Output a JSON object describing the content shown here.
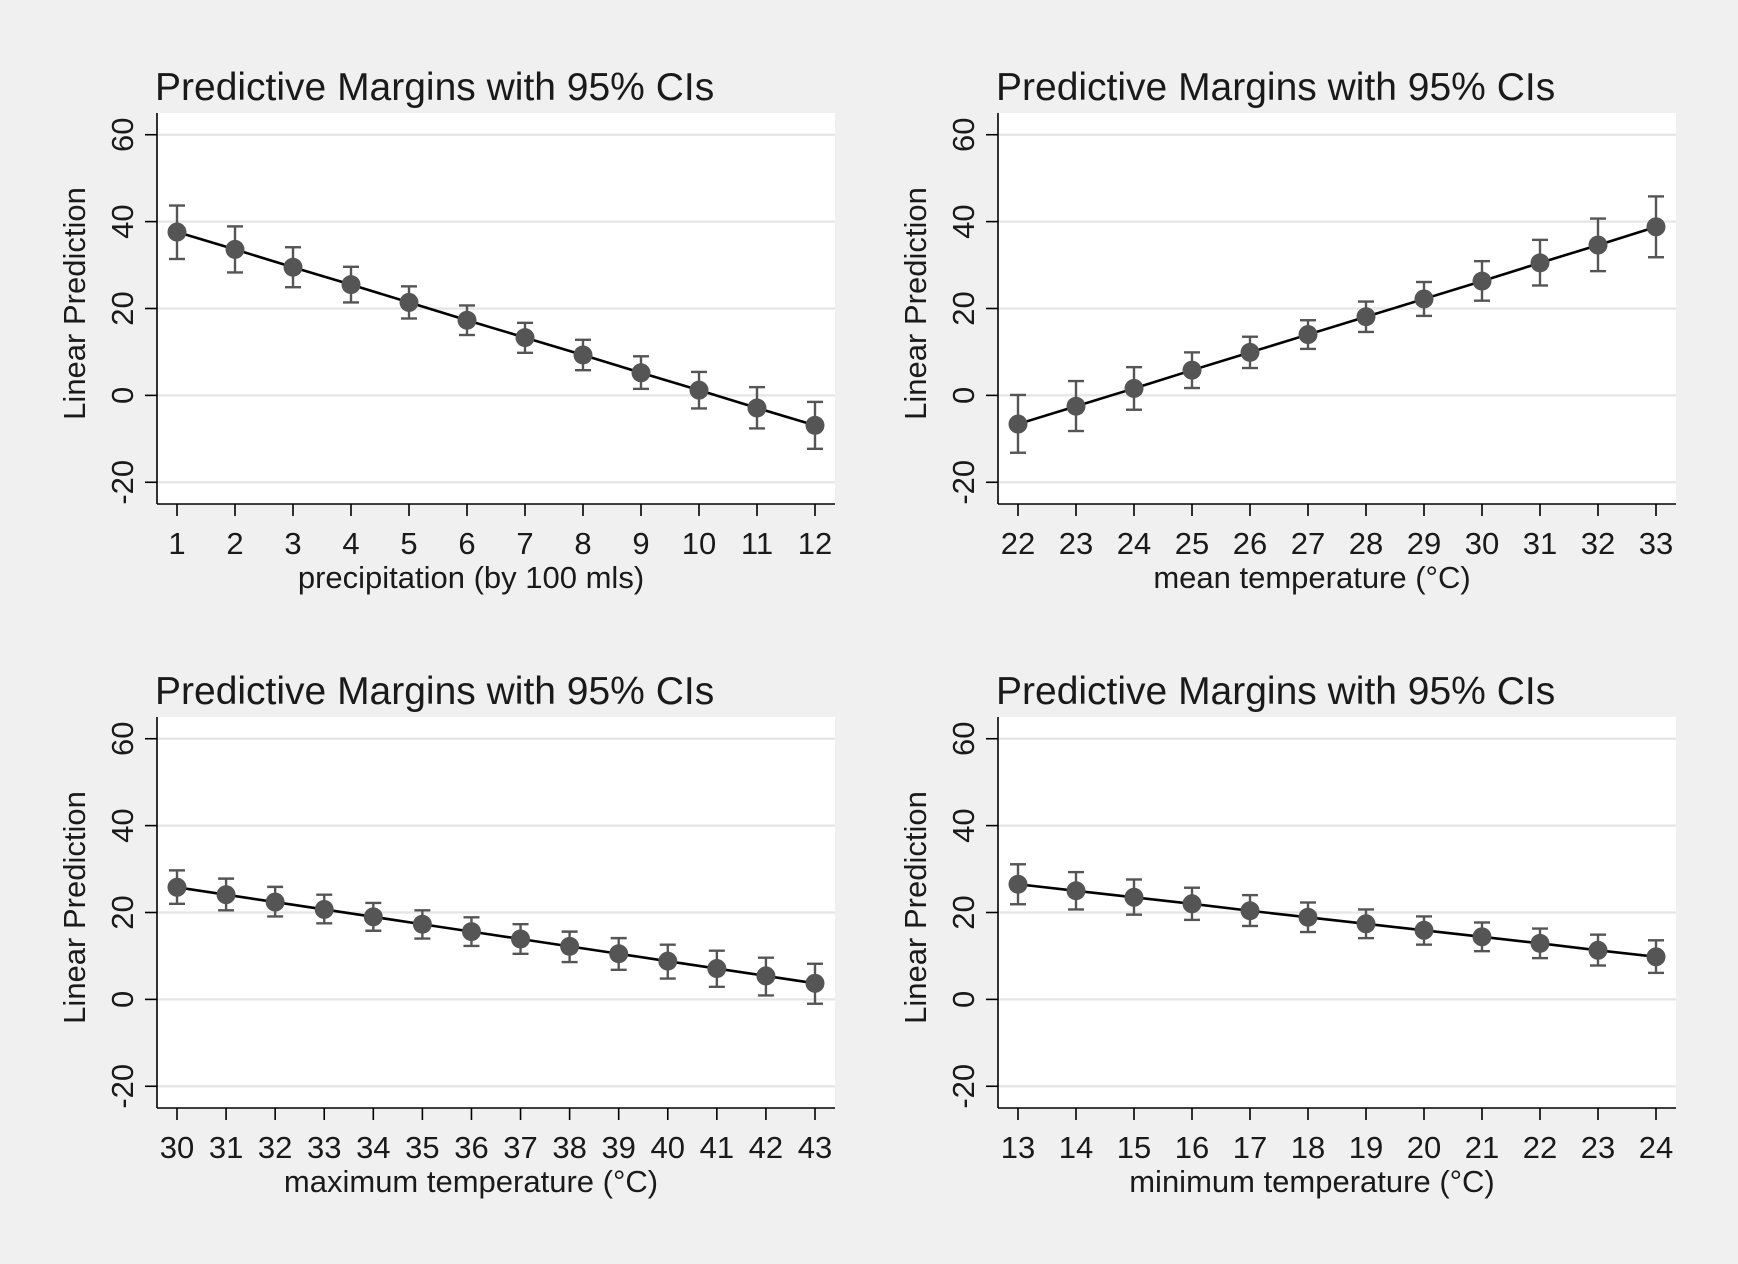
{
  "figure": {
    "background": "#f0f0f0",
    "plot_background": "#ffffff",
    "marker_color": "#555555",
    "line_color": "#000000",
    "grid_color": "#e5e5e5"
  },
  "chart_data": [
    {
      "type": "line",
      "title": "Predictive Margins with 95% CIs",
      "xlabel": "precipitation (by 100 mls)",
      "ylabel": "Linear Prediction",
      "ylim": [
        -25,
        65
      ],
      "yticks": [
        "-20",
        "0",
        "20",
        "40",
        "60"
      ],
      "grid": true,
      "x": [
        1,
        2,
        3,
        4,
        5,
        6,
        7,
        8,
        9,
        10,
        11,
        12
      ],
      "xtick_labels": [
        "1",
        "2",
        "3",
        "4",
        "5",
        "6",
        "7",
        "8",
        "9",
        "10",
        "11",
        "12"
      ],
      "y": [
        37.6,
        33.6,
        29.5,
        25.5,
        21.4,
        17.3,
        13.3,
        9.3,
        5.2,
        1.2,
        -2.9,
        -6.9
      ],
      "ci_low": [
        31.4,
        28.3,
        24.9,
        21.4,
        17.7,
        13.9,
        9.8,
        5.8,
        1.5,
        -3.0,
        -7.6,
        -12.3
      ],
      "ci_high": [
        43.7,
        38.9,
        34.1,
        29.6,
        25.1,
        20.7,
        16.7,
        12.8,
        9.0,
        5.4,
        1.9,
        -1.5
      ]
    },
    {
      "type": "line",
      "title": "Predictive Margins with 95% CIs",
      "xlabel": "mean temperature (°C)",
      "ylabel": "Linear Prediction",
      "ylim": [
        -25,
        65
      ],
      "yticks": [
        "-20",
        "0",
        "20",
        "40",
        "60"
      ],
      "grid": true,
      "x": [
        22,
        23,
        24,
        25,
        26,
        27,
        28,
        29,
        30,
        31,
        32,
        33
      ],
      "xtick_labels": [
        "22",
        "23",
        "24",
        "25",
        "26",
        "27",
        "28",
        "29",
        "30",
        "31",
        "32",
        "33"
      ],
      "y": [
        -6.6,
        -2.5,
        1.6,
        5.8,
        9.9,
        14.0,
        18.1,
        22.2,
        26.3,
        30.5,
        34.6,
        38.8
      ],
      "ci_low": [
        -13.2,
        -8.2,
        -3.3,
        1.7,
        6.3,
        10.7,
        14.6,
        18.3,
        21.8,
        25.3,
        28.6,
        31.8
      ],
      "ci_high": [
        0.1,
        3.3,
        6.5,
        9.9,
        13.5,
        17.3,
        21.6,
        26.1,
        30.9,
        35.8,
        40.7,
        45.8
      ]
    },
    {
      "type": "line",
      "title": "Predictive Margins with 95% CIs",
      "xlabel": "maximum temperature (°C)",
      "ylabel": "Linear Prediction",
      "ylim": [
        -25,
        65
      ],
      "yticks": [
        "-20",
        "0",
        "20",
        "40",
        "60"
      ],
      "grid": true,
      "x": [
        30,
        31,
        32,
        33,
        34,
        35,
        36,
        37,
        38,
        39,
        40,
        41,
        42,
        43
      ],
      "xtick_labels": [
        "30",
        "31",
        "32",
        "33",
        "34",
        "35",
        "36",
        "37",
        "38",
        "39",
        "40",
        "41",
        "42",
        "43"
      ],
      "y": [
        25.8,
        24.1,
        22.4,
        20.7,
        19.0,
        17.3,
        15.6,
        13.9,
        12.2,
        10.5,
        8.8,
        7.1,
        5.4,
        3.7
      ],
      "ci_low": [
        22.0,
        20.5,
        19.1,
        17.5,
        15.8,
        14.0,
        12.3,
        10.5,
        8.6,
        6.8,
        4.8,
        2.9,
        0.9,
        -1.0
      ],
      "ci_high": [
        29.7,
        27.8,
        25.9,
        24.1,
        22.2,
        20.5,
        18.9,
        17.3,
        15.6,
        14.1,
        12.6,
        11.2,
        9.6,
        8.2
      ]
    },
    {
      "type": "line",
      "title": "Predictive Margins with 95% CIs",
      "xlabel": "minimum temperature (°C)",
      "ylabel": "Linear Prediction",
      "ylim": [
        -25,
        65
      ],
      "yticks": [
        "-20",
        "0",
        "20",
        "40",
        "60"
      ],
      "grid": true,
      "x": [
        13,
        14,
        15,
        16,
        17,
        18,
        19,
        20,
        21,
        22,
        23,
        24
      ],
      "xtick_labels": [
        "13",
        "14",
        "15",
        "16",
        "17",
        "18",
        "19",
        "20",
        "21",
        "22",
        "23",
        "24"
      ],
      "y": [
        26.5,
        25.0,
        23.5,
        22.0,
        20.4,
        18.9,
        17.4,
        15.9,
        14.4,
        12.9,
        11.3,
        9.8
      ],
      "ci_low": [
        21.9,
        20.7,
        19.5,
        18.3,
        16.9,
        15.5,
        14.1,
        12.6,
        11.1,
        9.5,
        7.8,
        6.1
      ],
      "ci_high": [
        31.1,
        29.3,
        27.6,
        25.7,
        24.0,
        22.3,
        20.7,
        19.1,
        17.7,
        16.3,
        14.9,
        13.6
      ]
    }
  ]
}
